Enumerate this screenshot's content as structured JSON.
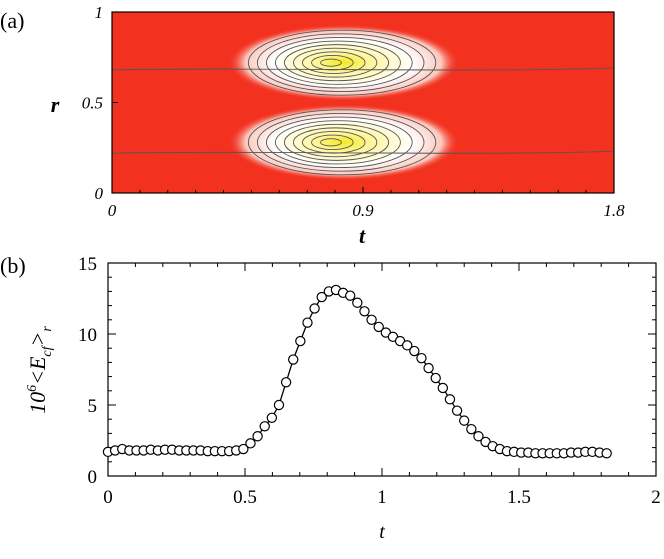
{
  "chart_data": [
    {
      "panel_label": "(a)",
      "type": "heatmap",
      "title": "",
      "xlabel": "t",
      "ylabel": "r",
      "xlim": [
        0,
        1.8
      ],
      "ylim": [
        0,
        1
      ],
      "x_ticks": [
        "0",
        "0.9",
        "1.8"
      ],
      "y_ticks": [
        "0",
        "0.5",
        "1"
      ],
      "colors": {
        "low": "#f2311f",
        "mid": "#ffffff",
        "high": "#f5ec1a"
      },
      "lobes": [
        {
          "t_center": 0.83,
          "r_center": 0.72,
          "t_extent": [
            0.52,
            1.35
          ],
          "r_extent": [
            0.55,
            0.97
          ]
        },
        {
          "t_center": 0.83,
          "r_center": 0.28,
          "t_extent": [
            0.52,
            1.35
          ],
          "r_extent": [
            0.03,
            0.45
          ]
        }
      ]
    },
    {
      "panel_label": "(b)",
      "type": "line",
      "title": "",
      "xlabel": "t",
      "ylabel": "10^6 <E_cf>_r",
      "xlim": [
        0,
        2
      ],
      "ylim": [
        0,
        15
      ],
      "x_ticks": [
        "0",
        "0.5",
        "1",
        "1.5",
        "2"
      ],
      "y_ticks": [
        "0",
        "5",
        "10",
        "15"
      ],
      "series": [
        {
          "marker": "open-circle",
          "x": [
            0.0,
            0.026,
            0.052,
            0.078,
            0.104,
            0.13,
            0.156,
            0.182,
            0.208,
            0.234,
            0.26,
            0.286,
            0.312,
            0.338,
            0.364,
            0.39,
            0.416,
            0.442,
            0.468,
            0.494,
            0.52,
            0.546,
            0.572,
            0.598,
            0.624,
            0.65,
            0.676,
            0.702,
            0.728,
            0.754,
            0.78,
            0.806,
            0.832,
            0.858,
            0.884,
            0.91,
            0.936,
            0.962,
            0.988,
            1.014,
            1.04,
            1.066,
            1.092,
            1.118,
            1.144,
            1.17,
            1.196,
            1.222,
            1.248,
            1.274,
            1.3,
            1.326,
            1.352,
            1.378,
            1.404,
            1.43,
            1.456,
            1.482,
            1.508,
            1.534,
            1.56,
            1.586,
            1.612,
            1.638,
            1.664,
            1.69,
            1.716,
            1.742,
            1.768,
            1.794,
            1.82
          ],
          "y": [
            1.7,
            1.8,
            1.9,
            1.8,
            1.8,
            1.8,
            1.85,
            1.8,
            1.85,
            1.85,
            1.8,
            1.8,
            1.8,
            1.8,
            1.75,
            1.75,
            1.75,
            1.75,
            1.8,
            1.9,
            2.3,
            2.8,
            3.5,
            4.1,
            5.0,
            6.6,
            8.2,
            9.5,
            10.8,
            11.8,
            12.6,
            13.0,
            13.1,
            12.9,
            12.7,
            12.2,
            11.6,
            11.0,
            10.5,
            10.1,
            9.8,
            9.5,
            9.2,
            8.8,
            8.3,
            7.6,
            6.9,
            6.2,
            5.4,
            4.6,
            3.9,
            3.3,
            2.8,
            2.4,
            2.1,
            1.9,
            1.75,
            1.7,
            1.65,
            1.65,
            1.6,
            1.6,
            1.6,
            1.6,
            1.6,
            1.65,
            1.65,
            1.7,
            1.7,
            1.65,
            1.6
          ]
        }
      ]
    }
  ]
}
